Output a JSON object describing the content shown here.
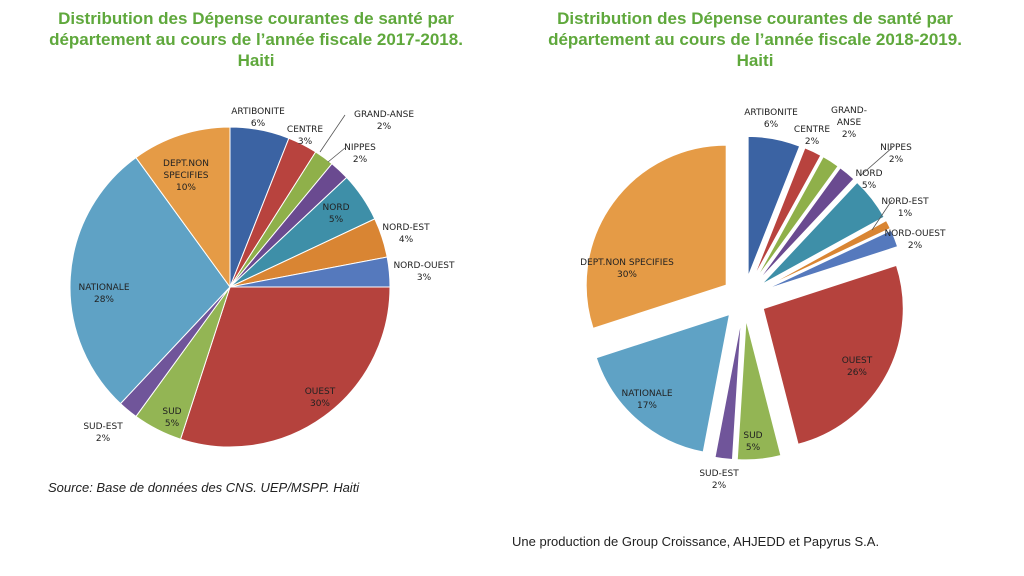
{
  "charts": [
    {
      "title_lines": [
        "Distribution des Dépense courantes de santé par",
        "département au cours de l’année fiscale 2017-2018.",
        "Haiti"
      ],
      "slice_labels": [
        [
          "ARTIBONITE",
          "6%"
        ],
        [
          "CENTRE",
          "3%"
        ],
        [
          "GRAND-ANSE",
          "2%"
        ],
        [
          "NIPPES",
          "2%"
        ],
        [
          "NORD",
          "5%"
        ],
        [
          "NORD-EST",
          "4%"
        ],
        [
          "NORD-OUEST",
          "3%"
        ],
        [
          "OUEST",
          "30%"
        ],
        [
          "SUD",
          "5%"
        ],
        [
          "SUD-EST",
          "2%"
        ],
        [
          "NATIONALE",
          "28%"
        ],
        [
          "DEPT.NON",
          "SPECIFIES",
          "10%"
        ]
      ]
    },
    {
      "title_lines": [
        "Distribution des Dépense courantes de santé par",
        "département au cours de l’année fiscale 2018-2019.",
        "Haiti"
      ],
      "slice_labels": [
        [
          "ARTIBONITE",
          "6%"
        ],
        [
          "CENTRE",
          "2%"
        ],
        [
          "GRAND-",
          "ANSE",
          "2%"
        ],
        [
          "NIPPES",
          "2%"
        ],
        [
          "NORD",
          "5%"
        ],
        [
          "NORD-EST",
          "1%"
        ],
        [
          "NORD-OUEST",
          "2%"
        ],
        [
          "OUEST",
          "26%"
        ],
        [
          "SUD",
          "5%"
        ],
        [
          "SUD-EST",
          "2%"
        ],
        [
          "NATIONALE",
          "17%"
        ],
        [
          "DEPT.NON SPECIFIES",
          "30%"
        ]
      ]
    }
  ],
  "chart_data": [
    {
      "type": "pie",
      "title": "Distribution des Dépense courantes de santé par département au cours de l’année fiscale 2017-2018. Haiti",
      "slices": [
        {
          "name": "ARTIBONITE",
          "value": 6,
          "color": "#3b63a3"
        },
        {
          "name": "CENTRE",
          "value": 3,
          "color": "#b8433e"
        },
        {
          "name": "GRAND-ANSE",
          "value": 2,
          "color": "#8fb04a"
        },
        {
          "name": "NIPPES",
          "value": 2,
          "color": "#6a4a90"
        },
        {
          "name": "NORD",
          "value": 5,
          "color": "#3e8fa8"
        },
        {
          "name": "NORD-EST",
          "value": 4,
          "color": "#d98533"
        },
        {
          "name": "NORD-OUEST",
          "value": 3,
          "color": "#5579bd"
        },
        {
          "name": "OUEST",
          "value": 30,
          "color": "#b5423d"
        },
        {
          "name": "SUD",
          "value": 5,
          "color": "#93b554"
        },
        {
          "name": "SUD-EST",
          "value": 2,
          "color": "#70559a"
        },
        {
          "name": "NATIONALE",
          "value": 28,
          "color": "#5fa2c5"
        },
        {
          "name": "DEPT.NON SPECIFIES",
          "value": 10,
          "color": "#e59b46"
        }
      ]
    },
    {
      "type": "pie",
      "title": "Distribution des Dépense courantes de santé par département au cours de l’année fiscale 2018-2019. Haiti",
      "slices": [
        {
          "name": "ARTIBONITE",
          "value": 6,
          "color": "#3b63a3"
        },
        {
          "name": "CENTRE",
          "value": 2,
          "color": "#b8433e"
        },
        {
          "name": "GRAND-ANSE",
          "value": 2,
          "color": "#8fb04a"
        },
        {
          "name": "NIPPES",
          "value": 2,
          "color": "#6a4a90"
        },
        {
          "name": "NORD",
          "value": 5,
          "color": "#3e8fa8"
        },
        {
          "name": "NORD-EST",
          "value": 1,
          "color": "#d98533"
        },
        {
          "name": "NORD-OUEST",
          "value": 2,
          "color": "#5579bd"
        },
        {
          "name": "OUEST",
          "value": 26,
          "color": "#b5423d"
        },
        {
          "name": "SUD",
          "value": 5,
          "color": "#93b554"
        },
        {
          "name": "SUD-EST",
          "value": 2,
          "color": "#70559a"
        },
        {
          "name": "NATIONALE",
          "value": 17,
          "color": "#5fa2c5"
        },
        {
          "name": "DEPT.NON SPECIFIES",
          "value": 30,
          "color": "#e59b46"
        }
      ]
    }
  ],
  "source_note": "Source: Base de données des CNS. UEP/MSPP. Haiti",
  "credit_note": "Une production de Group Croissance, AHJEDD et Papyrus S.A."
}
